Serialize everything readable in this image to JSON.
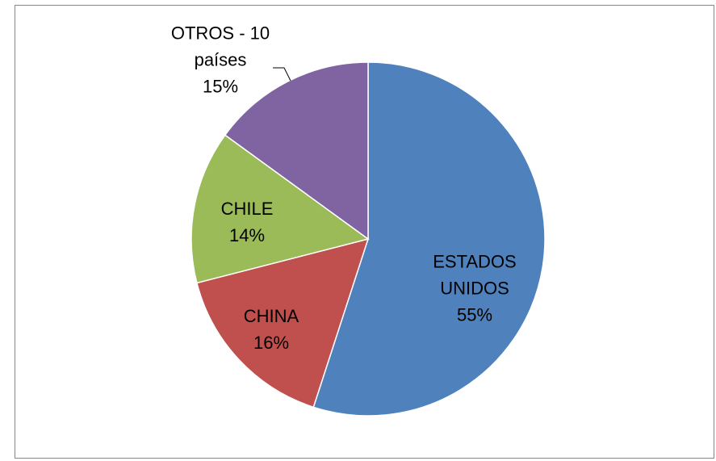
{
  "chart_data": {
    "type": "pie",
    "categories": [
      "ESTADOS UNIDOS",
      "CHINA",
      "CHILE",
      "OTROS - 10 países"
    ],
    "values": [
      55,
      16,
      14,
      15
    ],
    "value_labels": [
      "55%",
      "16%",
      "14%",
      "15%"
    ],
    "colors": [
      "#4f81bd",
      "#c0504d",
      "#9bbb59",
      "#8064a2"
    ]
  }
}
